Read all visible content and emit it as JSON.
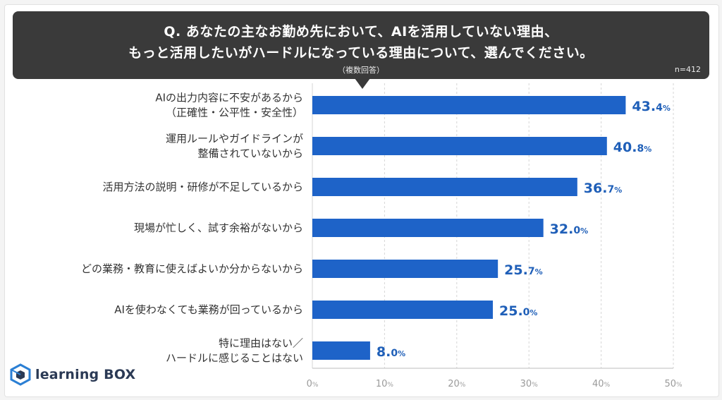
{
  "header": {
    "title_line1": "Q. あなたの主なお勤め先において、AIを活用していない理由、",
    "title_line2": "もっと活用したいがハードルになっている理由について、選んでください。",
    "note": "（複数回答）",
    "n": "n=412"
  },
  "colors": {
    "bar": "#1e63c8",
    "value_text": "#1f5fb8",
    "title_bg": "#3a3a3a"
  },
  "logo": {
    "text": "learning BOX",
    "icon": "cube-logo-icon"
  },
  "chart_data": {
    "type": "bar",
    "orientation": "horizontal",
    "categories": [
      [
        "AIの出力内容に不安があるから",
        "（正確性・公平性・安全性）"
      ],
      [
        "運用ルールやガイドラインが",
        "整備されていないから"
      ],
      [
        "活用方法の説明・研修が不足しているから"
      ],
      [
        "現場が忙しく、試す余裕がないから"
      ],
      [
        "どの業務・教育に使えばよいか分からないから"
      ],
      [
        "AIを使わなくても業務が回っているから"
      ],
      [
        "特に理由はない／",
        "ハードルに感じることはない"
      ]
    ],
    "values": [
      43.4,
      40.8,
      36.7,
      32.0,
      25.7,
      25.0,
      8.0
    ],
    "value_labels": [
      "43.4",
      "40.8",
      "36.7",
      "32.0",
      "25.7",
      "25.0",
      "8.0"
    ],
    "unit": "%",
    "xlim": [
      0,
      50
    ],
    "ticks": [
      0,
      10,
      20,
      30,
      40,
      50
    ],
    "tick_labels": [
      "0",
      "10",
      "20",
      "30",
      "40",
      "50"
    ],
    "grid": true
  }
}
